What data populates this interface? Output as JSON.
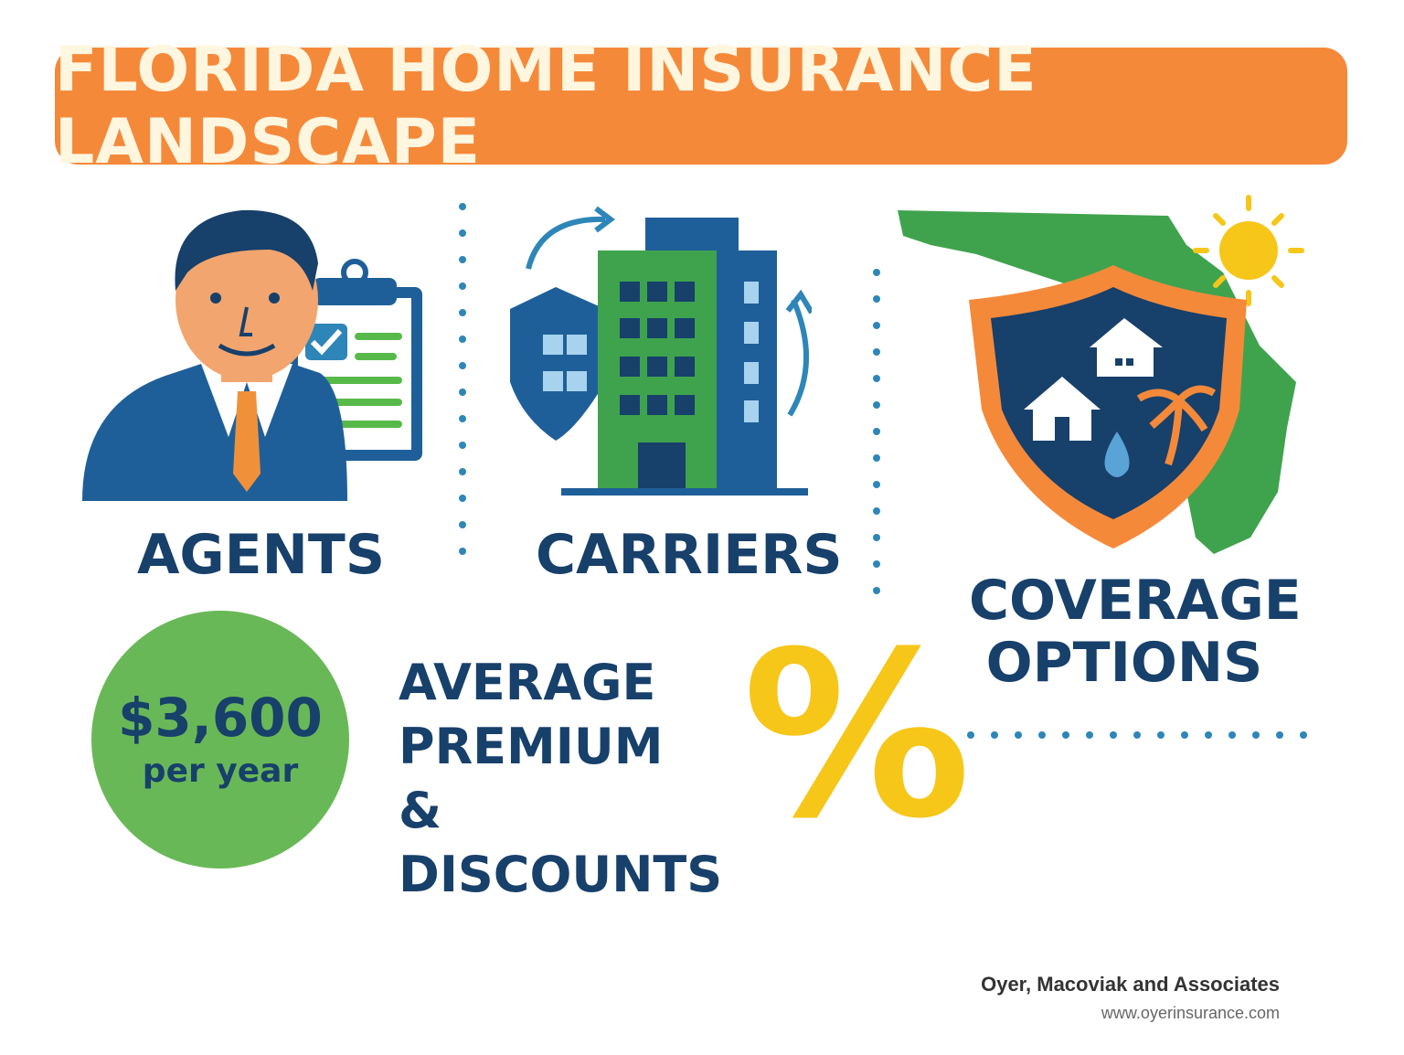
{
  "header": {
    "title": "FLORIDA HOME INSURANCE LANDSCAPE"
  },
  "sections": {
    "agents": {
      "label": "AGENTS",
      "icon": "agent-with-clipboard-icon"
    },
    "carriers": {
      "label": "CARRIERS",
      "icon": "carrier-building-shield-icon"
    },
    "coverage": {
      "label_line1": "COVERAGE",
      "label_line2": "OPTIONS",
      "icon": "florida-shield-coverage-icon"
    }
  },
  "premium": {
    "amount": "$3,600",
    "period": "per year",
    "line1": "AVERAGE",
    "line2": "PREMIUM",
    "line3": "& DISCOUNTS",
    "symbol": "%"
  },
  "footer": {
    "company": "Oyer, Macoviak and Associates",
    "url": "www.oyerinsurance.com"
  },
  "colors": {
    "orange": "#F5893A",
    "navy": "#17406B",
    "blue": "#2E86B8",
    "green": "#3FA34D",
    "light_green": "#69B857",
    "yellow": "#F6C619"
  }
}
